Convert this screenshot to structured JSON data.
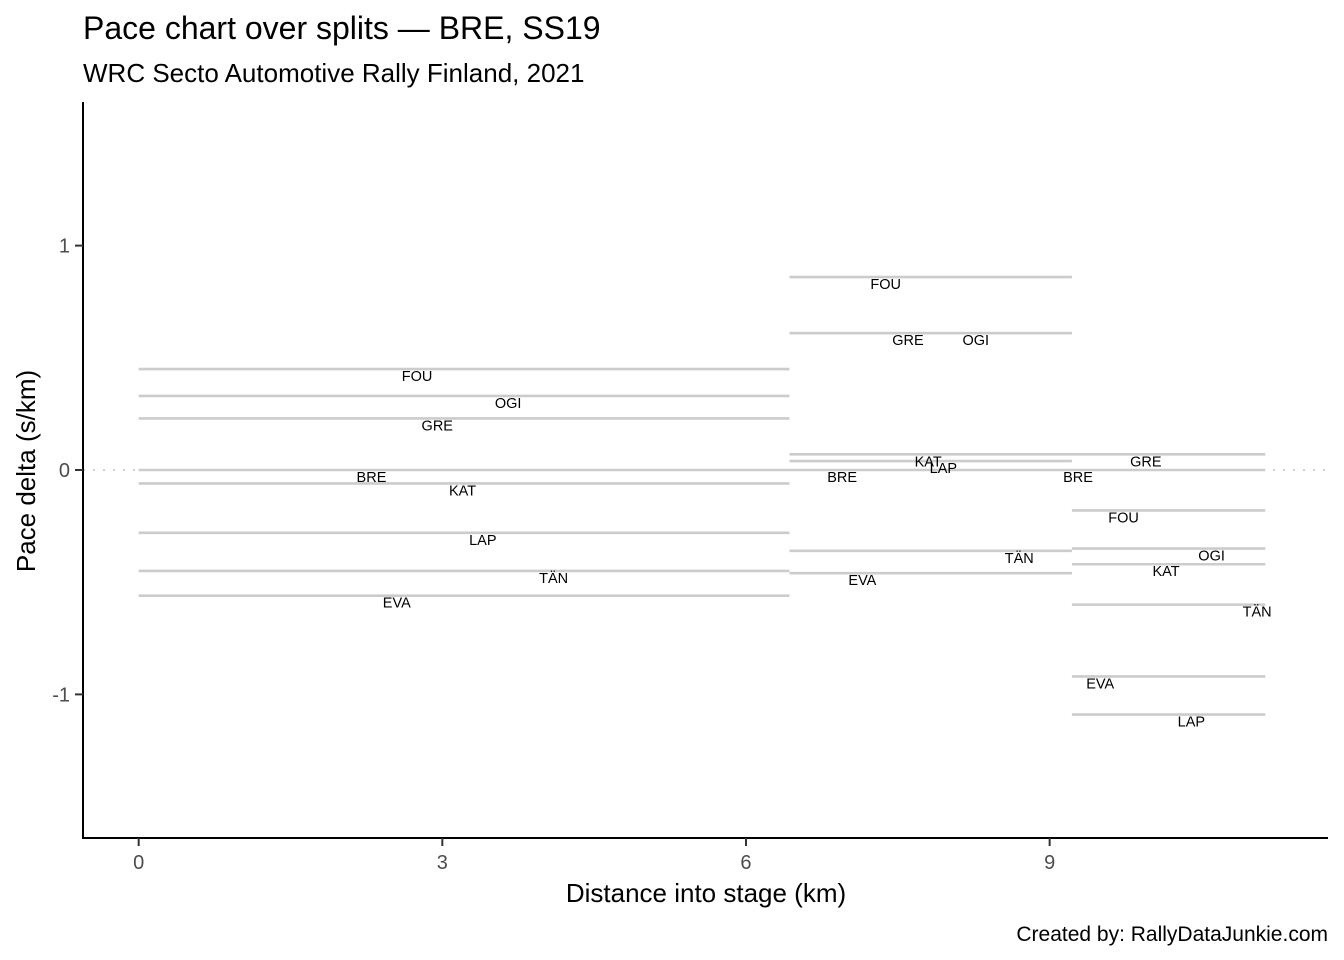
{
  "chart_data": {
    "type": "line",
    "title": "Pace chart over splits — BRE, SS19",
    "subtitle": "WRC Secto Automotive Rally Finland, 2021",
    "xlabel": "Distance into stage (km)",
    "ylabel": "Pace delta (s/km)",
    "caption": "Created by: RallyDataJunkie.com",
    "xlim": [
      -0.55,
      11.75
    ],
    "ylim": [
      1.64,
      -1.64
    ],
    "y_reversed": true,
    "x_ticks": [
      0,
      3,
      6,
      9
    ],
    "x_tick_labels": [
      "0",
      "3",
      "6",
      "9"
    ],
    "y_ticks": [
      -1,
      0,
      1
    ],
    "y_tick_labels": [
      "-1",
      "0",
      "1"
    ],
    "zero_reference_line": 0,
    "grid": false,
    "legend": "none",
    "segments": [
      {
        "driver": "EVA",
        "x_start": 0,
        "x_end": 6.43,
        "pace": -0.56,
        "label_x": 2.55
      },
      {
        "driver": "TÄN",
        "x_start": 0,
        "x_end": 6.43,
        "pace": -0.45,
        "label_x": 4.1
      },
      {
        "driver": "LAP",
        "x_start": 0,
        "x_end": 6.43,
        "pace": -0.28,
        "label_x": 3.4
      },
      {
        "driver": "KAT",
        "x_start": 0,
        "x_end": 6.43,
        "pace": -0.06,
        "label_x": 3.2
      },
      {
        "driver": "BRE",
        "x_start": 0,
        "x_end": 6.43,
        "pace": 0.0,
        "label_x": 2.3
      },
      {
        "driver": "GRE",
        "x_start": 0,
        "x_end": 6.43,
        "pace": 0.23,
        "label_x": 2.95
      },
      {
        "driver": "OGI",
        "x_start": 0,
        "x_end": 6.43,
        "pace": 0.33,
        "label_x": 3.65
      },
      {
        "driver": "FOU",
        "x_start": 0,
        "x_end": 6.43,
        "pace": 0.45,
        "label_x": 2.75
      },
      {
        "driver": "EVA",
        "x_start": 6.43,
        "x_end": 9.22,
        "pace": -0.46,
        "label_x": 7.15
      },
      {
        "driver": "TÄN",
        "x_start": 6.43,
        "x_end": 9.22,
        "pace": -0.36,
        "label_x": 8.7
      },
      {
        "driver": "BRE",
        "x_start": 6.43,
        "x_end": 9.22,
        "pace": 0.0,
        "label_x": 6.95
      },
      {
        "driver": "LAP",
        "x_start": 6.43,
        "x_end": 9.22,
        "pace": 0.04,
        "label_x": 7.95
      },
      {
        "driver": "KAT",
        "x_start": 6.43,
        "x_end": 9.22,
        "pace": 0.07,
        "label_x": 7.8
      },
      {
        "driver": "GRE",
        "x_start": 6.43,
        "x_end": 9.22,
        "pace": 0.61,
        "label_x": 7.6
      },
      {
        "driver": "OGI",
        "x_start": 6.43,
        "x_end": 9.22,
        "pace": 0.61,
        "label_x": 8.27
      },
      {
        "driver": "FOU",
        "x_start": 6.43,
        "x_end": 9.22,
        "pace": 0.86,
        "label_x": 7.38
      },
      {
        "driver": "LAP",
        "x_start": 9.22,
        "x_end": 11.13,
        "pace": -1.09,
        "label_x": 10.4
      },
      {
        "driver": "EVA",
        "x_start": 9.22,
        "x_end": 11.13,
        "pace": -0.92,
        "label_x": 9.5
      },
      {
        "driver": "TÄN",
        "x_start": 9.22,
        "x_end": 11.13,
        "pace": -0.6,
        "label_x": 11.05
      },
      {
        "driver": "KAT",
        "x_start": 9.22,
        "x_end": 11.13,
        "pace": -0.42,
        "label_x": 10.15
      },
      {
        "driver": "OGI",
        "x_start": 9.22,
        "x_end": 11.13,
        "pace": -0.35,
        "label_x": 10.6
      },
      {
        "driver": "FOU",
        "x_start": 9.22,
        "x_end": 11.13,
        "pace": -0.18,
        "label_x": 9.73
      },
      {
        "driver": "BRE",
        "x_start": 9.22,
        "x_end": 11.13,
        "pace": 0.0,
        "label_x": 9.28
      },
      {
        "driver": "GRE",
        "x_start": 9.22,
        "x_end": 11.13,
        "pace": 0.07,
        "label_x": 9.95
      }
    ],
    "colors": {
      "segment_line": "#cccccc",
      "zero_line": "#d0d0d0",
      "axis": "#000000",
      "tick_label": "#4d4d4d",
      "text": "#000000",
      "background": "#ffffff"
    }
  }
}
